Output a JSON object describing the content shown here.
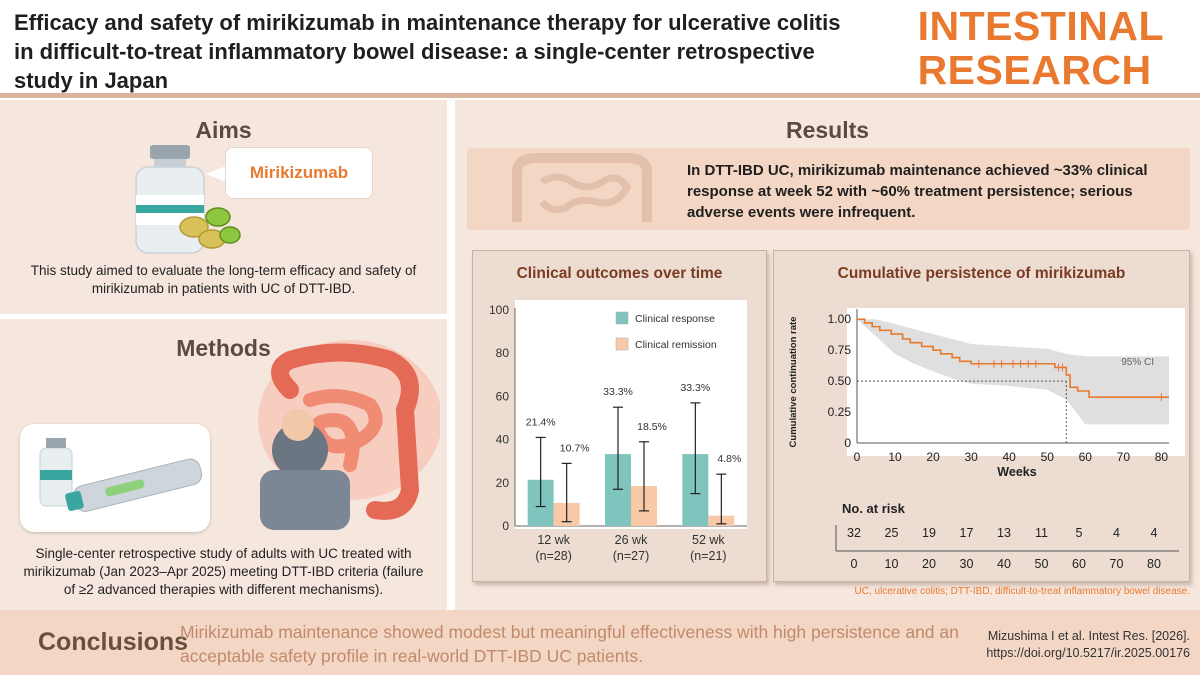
{
  "header": {
    "title": "Efficacy and safety of mirikizumab in maintenance therapy for ulcerative colitis in difficult-to-treat inflammatory bowel disease: a single-center retrospective study in Japan",
    "journal_line1": "INTESTINAL",
    "journal_line2": "RESEARCH"
  },
  "aims": {
    "heading": "Aims",
    "drug_label": "Mirikizumab",
    "text": "This study aimed to evaluate the long-term efficacy and safety of mirikizumab in patients with UC of DTT-IBD."
  },
  "methods": {
    "heading": "Methods",
    "text": "Single-center retrospective study of adults with UC treated with mirikizumab (Jan 2023–Apr 2025) meeting DTT-IBD criteria (failure of ≥2 advanced therapies with different mechanisms)."
  },
  "results": {
    "heading": "Results",
    "key_finding": "In DTT-IBD UC, mirikizumab maintenance achieved ~33% clinical response at week 52 with ~60% treatment persistence; serious adverse events were infrequent."
  },
  "colors": {
    "accent": "#e8792e",
    "response": "#7fc4bd",
    "remission": "#f7c9a6",
    "km_line": "#e8792e",
    "ci_band": "#d9d9d9"
  },
  "chart_data": [
    {
      "type": "bar",
      "title": "Clinical outcomes over time",
      "categories": [
        "12 wk\n(n=28)",
        "26 wk\n(n=27)",
        "52 wk\n(n=21)"
      ],
      "category_lines": [
        [
          "12 wk",
          "(n=28)"
        ],
        [
          "26 wk",
          "(n=27)"
        ],
        [
          "52 wk",
          "(n=21)"
        ]
      ],
      "series": [
        {
          "name": "Clinical response",
          "values": [
            21.4,
            33.3,
            33.3
          ],
          "ci": [
            [
              9,
              41
            ],
            [
              17,
              55
            ],
            [
              15,
              57
            ]
          ],
          "labels": [
            "21.4%",
            "33.3%",
            "33.3%"
          ]
        },
        {
          "name": "Clinical remission",
          "values": [
            10.7,
            18.5,
            4.8
          ],
          "ci": [
            [
              2,
              29
            ],
            [
              7,
              39
            ],
            [
              1,
              24
            ]
          ],
          "labels": [
            "10.7%",
            "18.5%",
            "4.8%"
          ]
        }
      ],
      "yticks": [
        0,
        20,
        40,
        60,
        80,
        100
      ],
      "ylim": [
        0,
        100
      ],
      "legend": "top-right",
      "grid": false
    },
    {
      "type": "line",
      "title": "Cumulative persistence of mirikizumab",
      "xlabel": "Weeks",
      "ylabel": "Cumulative continuation rate",
      "xticks": [
        0,
        10,
        20,
        30,
        40,
        50,
        60,
        70,
        80
      ],
      "yticks": [
        0,
        0.25,
        0.5,
        0.75,
        1.0
      ],
      "ytick_labels": [
        "0",
        "0.25",
        "0.50",
        "0.75",
        "1.00"
      ],
      "xlim": [
        0,
        82
      ],
      "ylim": [
        0,
        1.05
      ],
      "ci_label": "95% CI",
      "median_x": 55,
      "median_y": 0.5,
      "survival_steps": [
        [
          0,
          1.0
        ],
        [
          2,
          0.97
        ],
        [
          4,
          0.94
        ],
        [
          6,
          0.91
        ],
        [
          9,
          0.88
        ],
        [
          12,
          0.84
        ],
        [
          14,
          0.81
        ],
        [
          17,
          0.78
        ],
        [
          20,
          0.75
        ],
        [
          22,
          0.72
        ],
        [
          25,
          0.69
        ],
        [
          27,
          0.66
        ],
        [
          30,
          0.64
        ],
        [
          48,
          0.64
        ],
        [
          52,
          0.61
        ],
        [
          55,
          0.55
        ],
        [
          56,
          0.45
        ],
        [
          58,
          0.42
        ],
        [
          61,
          0.37
        ],
        [
          82,
          0.37
        ]
      ],
      "ci_upper": [
        [
          0,
          1.0
        ],
        [
          5,
          1.0
        ],
        [
          10,
          0.96
        ],
        [
          15,
          0.92
        ],
        [
          20,
          0.88
        ],
        [
          25,
          0.84
        ],
        [
          30,
          0.8
        ],
        [
          40,
          0.78
        ],
        [
          50,
          0.76
        ],
        [
          55,
          0.72
        ],
        [
          60,
          0.7
        ],
        [
          82,
          0.7
        ]
      ],
      "ci_lower": [
        [
          0,
          1.0
        ],
        [
          5,
          0.86
        ],
        [
          10,
          0.72
        ],
        [
          15,
          0.64
        ],
        [
          20,
          0.58
        ],
        [
          25,
          0.52
        ],
        [
          30,
          0.48
        ],
        [
          40,
          0.46
        ],
        [
          50,
          0.43
        ],
        [
          55,
          0.35
        ],
        [
          60,
          0.15
        ],
        [
          82,
          0.15
        ]
      ],
      "censor_x": [
        32,
        36,
        38,
        41,
        43,
        45,
        47,
        53,
        54,
        80
      ],
      "risk_table": {
        "label": "No. at risk",
        "weeks": [
          0,
          10,
          20,
          30,
          40,
          50,
          60,
          70,
          80
        ],
        "counts": [
          32,
          25,
          19,
          17,
          13,
          11,
          5,
          4,
          4
        ]
      }
    }
  ],
  "footnote": "UC, ulcerative colitis; DTT-IBD, difficult-to-treat inflammatory bowel disease.",
  "conclusions": {
    "label": "Conclusions",
    "text": "Mirikizumab maintenance showed modest but meaningful effectiveness with high persistence and an acceptable safety profile in real-world DTT-IBD UC patients."
  },
  "citation": {
    "line1": "Mizushima I et al. Intest Res. [2026].",
    "line2": "https://doi.org/10.5217/ir.2025.00176"
  }
}
